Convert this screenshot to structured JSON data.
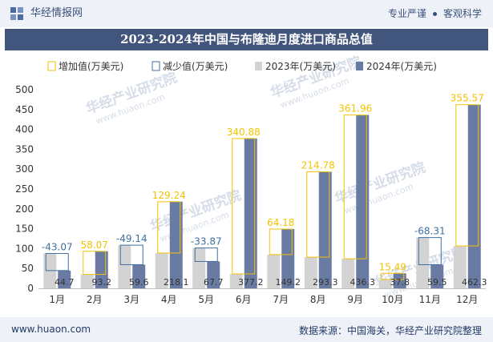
{
  "header": {
    "brand": "华经情报网",
    "tag1": "专业严谨",
    "tag2": "客观科学"
  },
  "footer": {
    "site": "www.huaon.com",
    "source": "数据来源：中国海关，华经产业研究院整理"
  },
  "watermark": "华经产业研究院",
  "watermark_url": "www.huaon.com",
  "colors": {
    "bar2023": "#d3d3d3",
    "bar2024": "#6a7ba3",
    "increase": "#f5c200",
    "decrease": "#3f6fa0",
    "title_bg": "#42557c"
  },
  "chart_data": {
    "type": "bar",
    "title": "2023-2024年中国与布隆迪月度进口商品总值",
    "categories": [
      "1月",
      "2月",
      "3月",
      "4月",
      "5月",
      "6月",
      "7月",
      "8月",
      "9月",
      "10月",
      "11月",
      "12月"
    ],
    "series": [
      {
        "name": "2023年(万美元)",
        "values": [
          87.77,
          35.13,
          108.74,
          88.86,
          101.57,
          36.32,
          85.02,
          78.52,
          74.34,
          22.31,
          127.81,
          106.73
        ]
      },
      {
        "name": "2024年(万美元)",
        "values": [
          44.7,
          93.2,
          59.6,
          218.1,
          67.7,
          377.2,
          149.2,
          293.3,
          436.3,
          37.8,
          59.5,
          462.3
        ]
      }
    ],
    "change": {
      "increase_name": "增加值(万美元)",
      "decrease_name": "减少值(万美元)",
      "values": [
        -43.07,
        58.07,
        -49.14,
        129.24,
        -33.87,
        340.88,
        64.18,
        214.78,
        361.96,
        15.49,
        -68.31,
        355.57
      ]
    },
    "ylim": [
      0,
      500
    ],
    "yticks": [
      0,
      50,
      100,
      150,
      200,
      250,
      300,
      350,
      400,
      450,
      500
    ],
    "legend_position": "top",
    "grid": false
  }
}
